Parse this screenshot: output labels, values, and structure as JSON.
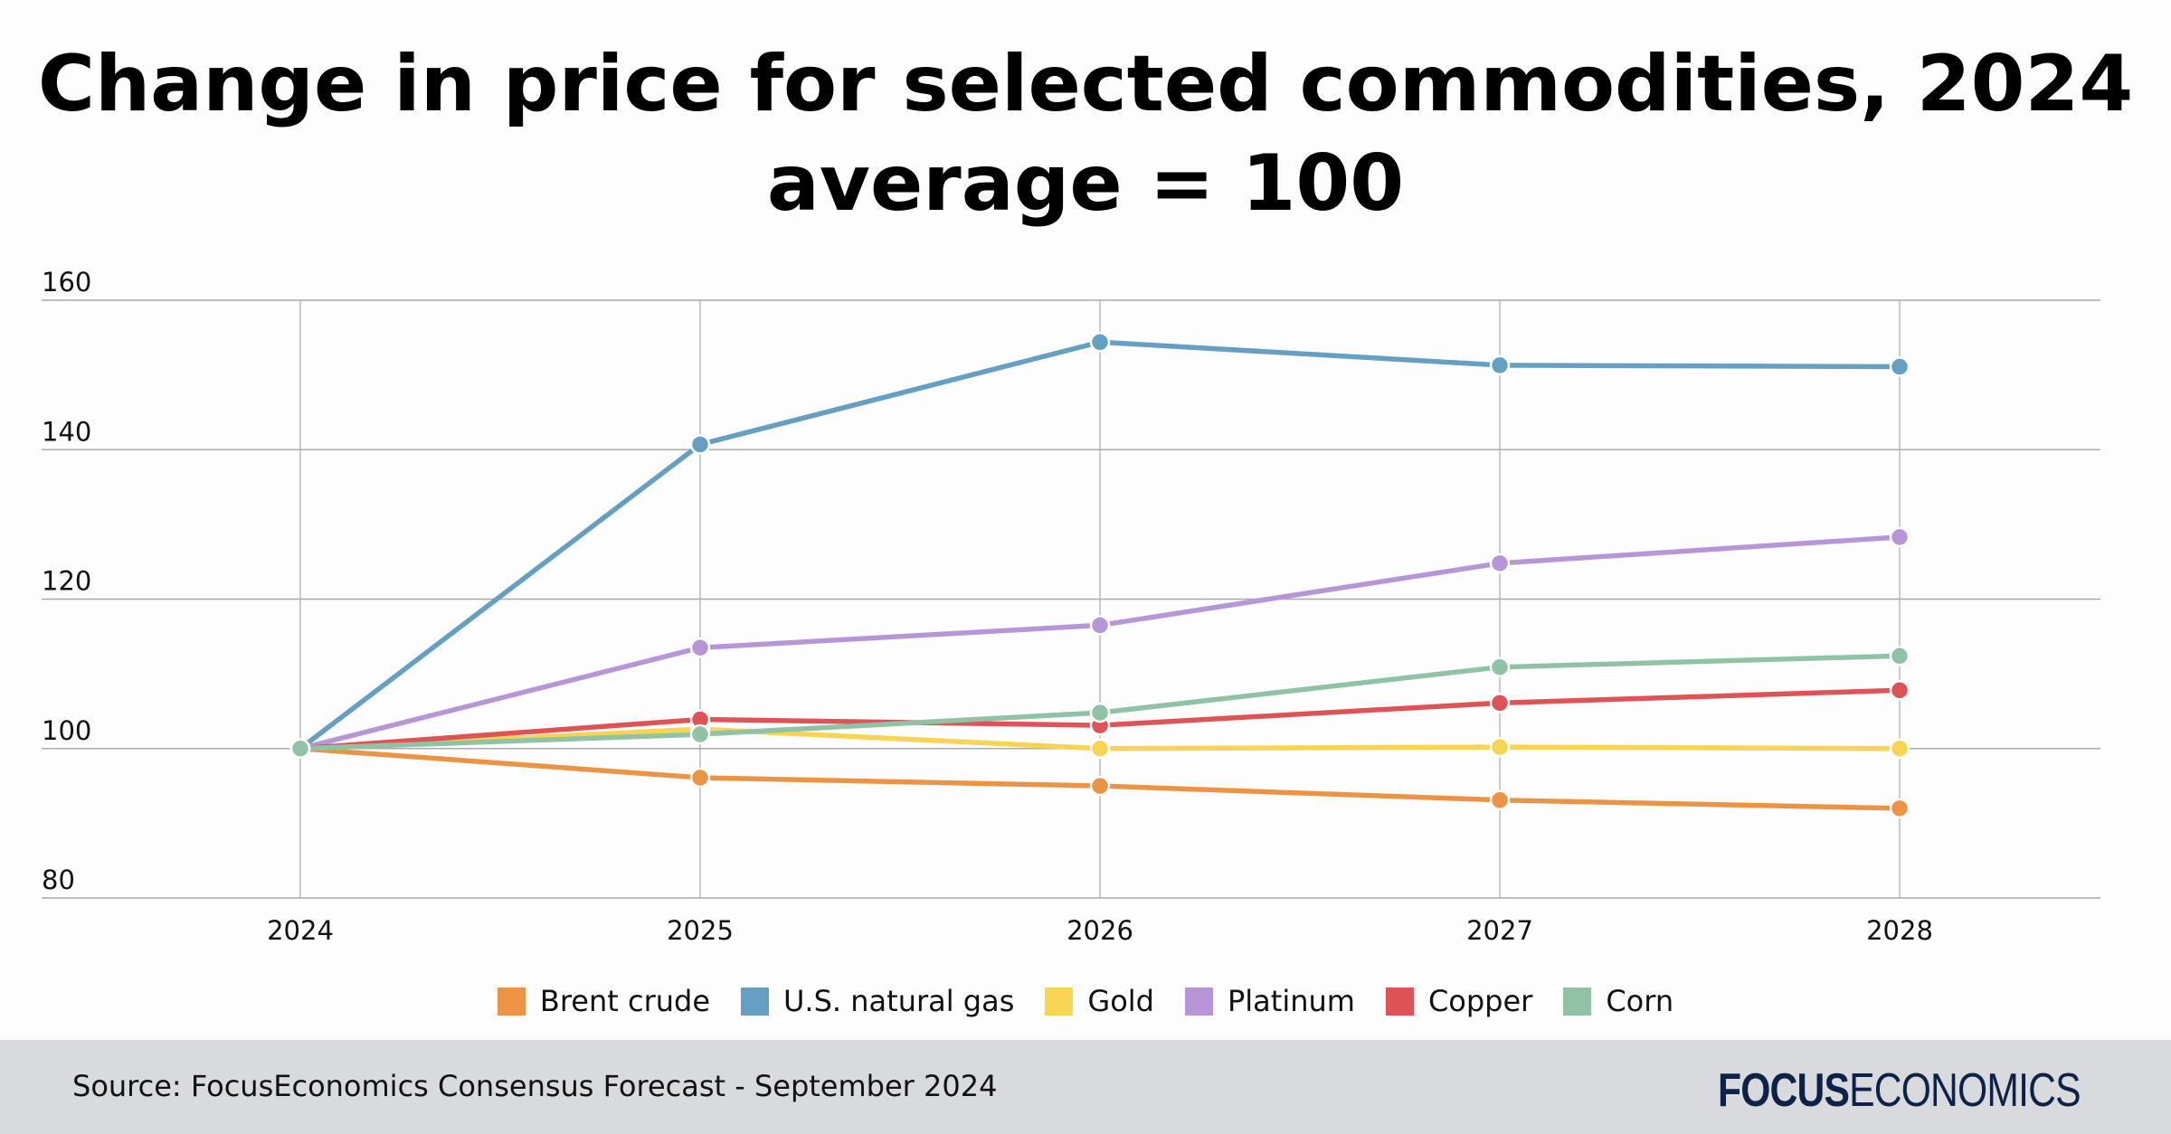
{
  "chart_data": {
    "type": "line",
    "title": "Change in price for selected commodities, 2024 average = 100",
    "x": [
      "2024",
      "2025",
      "2026",
      "2027",
      "2028"
    ],
    "ylim": [
      80,
      160
    ],
    "yticks": [
      80,
      100,
      120,
      140,
      160
    ],
    "grid": true,
    "legend_position": "bottom",
    "series": [
      {
        "name": "Brent crude",
        "color": "#ec9445",
        "values": [
          100,
          96.1,
          95.0,
          93.1,
          92.0
        ]
      },
      {
        "name": "U.S. natural gas",
        "color": "#65a0c2",
        "values": [
          100,
          140.7,
          154.4,
          151.3,
          151.1
        ]
      },
      {
        "name": "Gold",
        "color": "#f7d454",
        "values": [
          100,
          102.6,
          100.0,
          100.2,
          100.0
        ]
      },
      {
        "name": "Platinum",
        "color": "#b796d8",
        "values": [
          100,
          113.5,
          116.5,
          124.8,
          128.3
        ]
      },
      {
        "name": "Copper",
        "color": "#dd5356",
        "values": [
          100,
          103.9,
          103.1,
          106.1,
          107.8
        ]
      },
      {
        "name": "Corn",
        "color": "#90c3a6",
        "values": [
          100,
          101.9,
          104.8,
          110.9,
          112.4
        ]
      }
    ]
  },
  "footer": {
    "source": "Source: FocusEconomics Consensus Forecast - September 2024",
    "logo_bold": "FOCUS",
    "logo_light": "ECONOMICS"
  }
}
